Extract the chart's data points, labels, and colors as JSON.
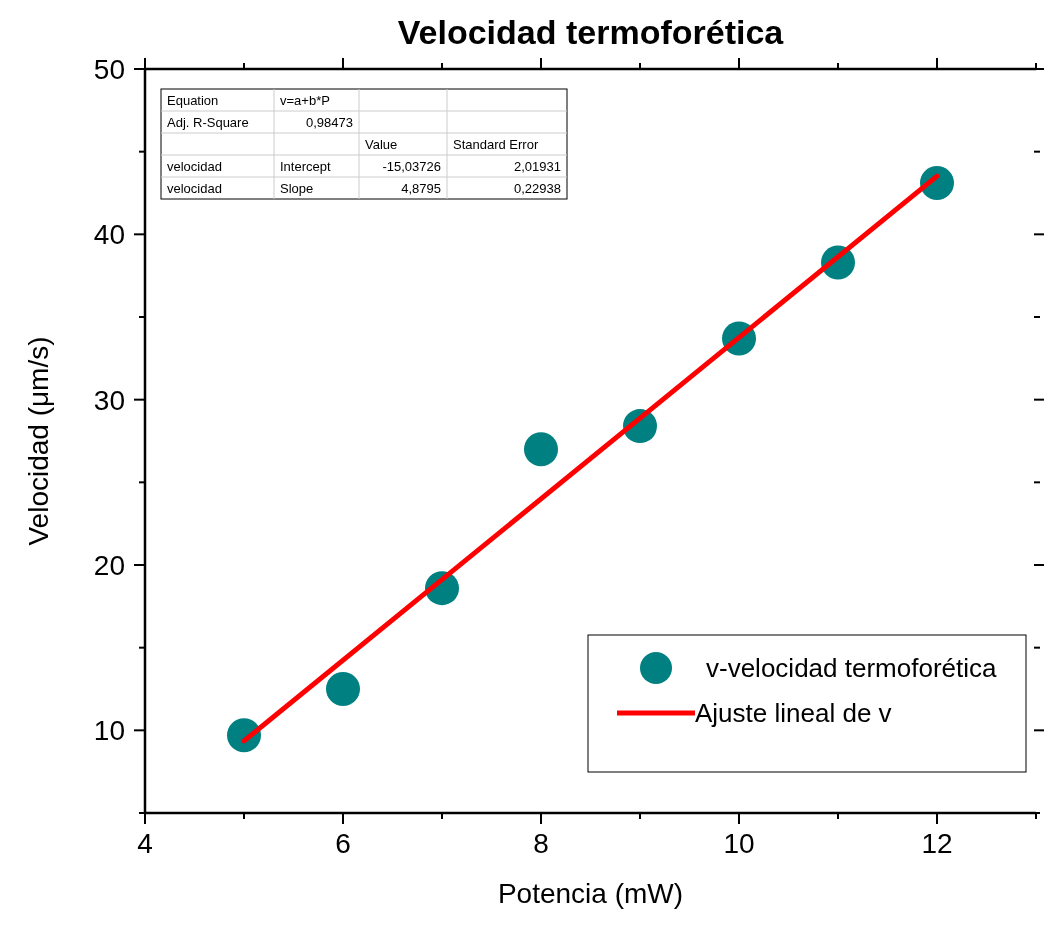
{
  "chart_data": {
    "type": "scatter",
    "title": "Velocidad termoforética",
    "xlabel": "Potencia (mW)",
    "ylabel": "Velocidad (μm/s)",
    "xlim": [
      4,
      13
    ],
    "ylim": [
      5,
      50
    ],
    "xticks": [
      4,
      {
        "value": 5,
        "label": null
      },
      6,
      {
        "value": 7,
        "label": null
      },
      8,
      {
        "value": 9,
        "label": null
      },
      10,
      {
        "value": 11,
        "label": null
      },
      12,
      {
        "value": 13,
        "label": null
      }
    ],
    "yticks": [
      {
        "value": 5,
        "label": null
      },
      10,
      {
        "value": 15,
        "label": null
      },
      20,
      {
        "value": 25,
        "label": null
      },
      30,
      {
        "value": 35,
        "label": null
      },
      40,
      {
        "value": 45,
        "label": null
      },
      50
    ],
    "legend": "bottom right",
    "grid": false,
    "series": [
      {
        "name": "v-velocidad termoforética",
        "color": "#008080",
        "marker": "circle",
        "x": [
          5,
          6,
          7,
          8,
          9,
          10,
          11,
          12
        ],
        "values": [
          9.7,
          12.5,
          18.6,
          27.0,
          28.4,
          33.7,
          38.3,
          43.1
        ]
      },
      {
        "name": "Ajuste lineal de v",
        "type": "line",
        "color": "#ff0000",
        "marker": "none",
        "line_style": "solid",
        "x": [
          5,
          12
        ],
        "values": [
          9.36,
          43.52
        ]
      }
    ],
    "annotations": [
      "Equation\tv=a+b*P\t\t",
      "Adj. R-Square\t0,98473\t\t",
      "\t\tValue\tStandard Error",
      "velocidad\tIntercept\t-15,03726\t2,01931",
      "velocidad\tSlope\t4,8795\t0,22938"
    ]
  }
}
